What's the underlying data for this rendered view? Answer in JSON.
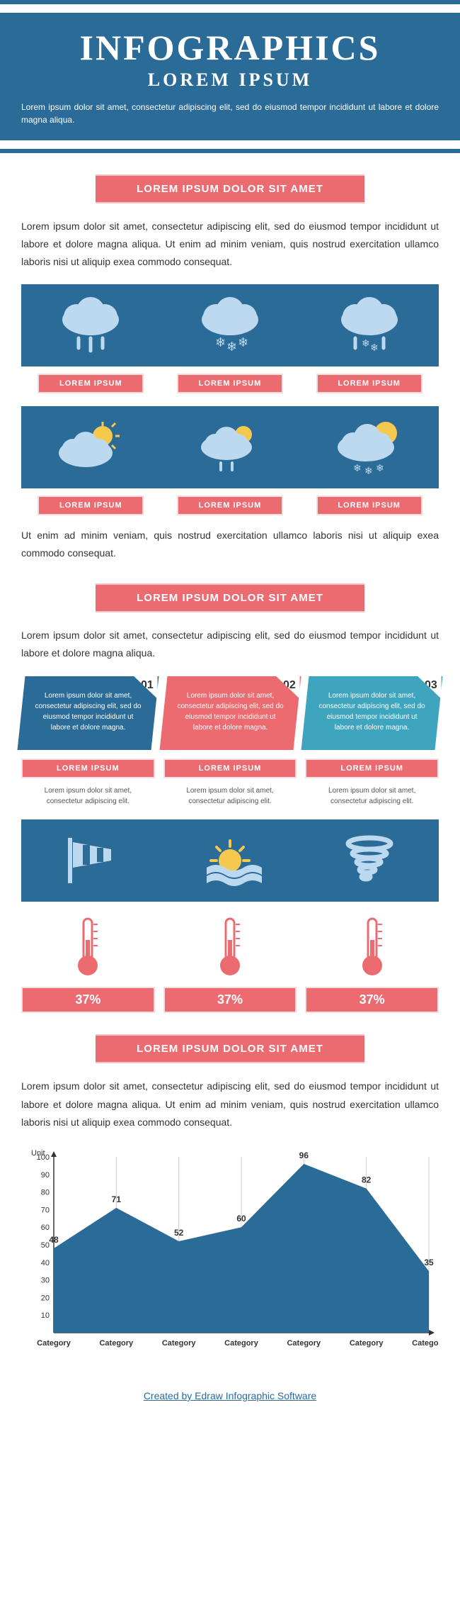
{
  "colors": {
    "primary": "#2b6b98",
    "accent": "#ec6b71",
    "accent_border": "#fadcdd",
    "teal": "#3fa5bf",
    "cloud": "#bcd9ef",
    "sun": "#f5c94e",
    "white": "#ffffff"
  },
  "header": {
    "title": "INFOGRAPHICS",
    "subtitle": "LOREM IPSUM",
    "desc": "Lorem ipsum dolor sit amet, consectetur adipiscing elit, sed do eiusmod tempor incididunt ut labore et dolore magna aliqua."
  },
  "section1": {
    "heading": "LOREM IPSUM DOLOR SIT AMET",
    "text1": "Lorem ipsum dolor sit amet, consectetur adipiscing elit, sed do eiusmod tempor incididunt ut labore et dolore magna aliqua. Ut enim ad minim veniam, quis nostrud exercitation ullamco laboris nisi ut aliquip exea commodo consequat.",
    "row1": [
      "LOREM IPSUM",
      "LOREM IPSUM",
      "LOREM IPSUM"
    ],
    "row2": [
      "LOREM IPSUM",
      "LOREM IPSUM",
      "LOREM IPSUM"
    ],
    "text2": "Ut enim ad minim veniam, quis nostrud exercitation ullamco laboris nisi ut aliquip exea commodo consequat."
  },
  "section2": {
    "heading": "LOREM IPSUM DOLOR SIT AMET",
    "text": "Lorem ipsum dolor sit amet, consectetur adipiscing elit, sed do eiusmod tempor incididunt ut labore et dolore magna aliqua.",
    "cards": [
      {
        "num": "01",
        "bg": "#2b6b98",
        "text": "Lorem ipsum dolor sit amet, consectetur adipiscing elit, sed do eiusmod tempor incididunt ut labore et dolore magna."
      },
      {
        "num": "02",
        "bg": "#ec6b71",
        "text": "Lorem ipsum dolor sit amet, consectetur adipiscing elit, sed do eiusmod tempor incididunt ut labore et dolore magna."
      },
      {
        "num": "03",
        "bg": "#3fa5bf",
        "text": "Lorem ipsum dolor sit amet, consectetur adipiscing elit, sed do eiusmod tempor incididunt ut labore et dolore magna."
      }
    ],
    "sublabels": [
      "LOREM IPSUM",
      "LOREM IPSUM",
      "LOREM IPSUM"
    ],
    "subtexts": [
      "Lorem ipsum dolor sit amet, consectetur adipiscing elit.",
      "Lorem ipsum dolor sit amet, consectetur adipiscing elit.",
      "Lorem ipsum dolor sit amet, consectetur adipiscing elit."
    ],
    "pcts": [
      "37%",
      "37%",
      "37%"
    ]
  },
  "section3": {
    "heading": "LOREM IPSUM DOLOR SIT AMET",
    "text": "Lorem ipsum dolor sit amet, consectetur adipiscing elit, sed do eiusmod tempor incididunt ut labore et dolore magna aliqua. Ut enim ad minim veniam, quis nostrud exercitation ullamco laboris nisi ut aliquip exea commodo consequat."
  },
  "chart": {
    "type": "area",
    "ylabel": "Unit",
    "ylim": [
      0,
      100
    ],
    "ytick_step": 10,
    "categories": [
      "Category",
      "Category",
      "Category",
      "Category",
      "Category",
      "Category",
      "Category"
    ],
    "values": [
      48,
      71,
      52,
      60,
      96,
      82,
      35
    ],
    "fill_color": "#2b6b98",
    "axis_color": "#333333",
    "grid_color": "#cccccc",
    "label_fontsize": 11,
    "value_fontsize": 12
  },
  "footer": "Created by Edraw Infographic Software"
}
